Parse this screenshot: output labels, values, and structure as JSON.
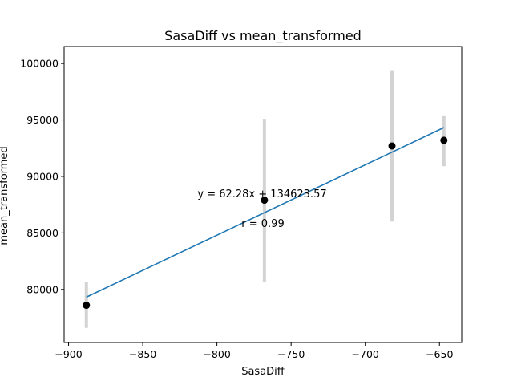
{
  "chart_data": {
    "type": "scatter",
    "title": "SasaDiff vs mean_transformed",
    "xlabel": "SasaDiff",
    "ylabel": "mean_transformed",
    "xlim": [
      -903,
      -635
    ],
    "ylim": [
      75300,
      101500
    ],
    "xticks": [
      -900,
      -850,
      -800,
      -750,
      -700,
      -650
    ],
    "xtick_labels": [
      "−900",
      "−850",
      "−800",
      "−750",
      "−700",
      "−650"
    ],
    "yticks": [
      80000,
      85000,
      90000,
      95000,
      100000
    ],
    "ytick_labels": [
      "80000",
      "85000",
      "90000",
      "95000",
      "100000"
    ],
    "grid": false,
    "points": [
      {
        "x": -888,
        "y": 78600,
        "err_low": 76600,
        "err_high": 80700
      },
      {
        "x": -768,
        "y": 87900,
        "err_low": 80700,
        "err_high": 95100
      },
      {
        "x": -682,
        "y": 92700,
        "err_low": 86000,
        "err_high": 99400
      },
      {
        "x": -647,
        "y": 93200,
        "err_low": 90900,
        "err_high": 95400
      }
    ],
    "fit_line": {
      "slope": 62.28,
      "intercept": 134623.57,
      "x_range": [
        -888,
        -647
      ]
    },
    "annotations": {
      "equation": "y = 62.28x + 134623.57",
      "r": "r = 0.99"
    },
    "colors": {
      "points": "#000000",
      "errorbars": "#d3d3d3",
      "fit_line": "#1f77b4"
    }
  }
}
